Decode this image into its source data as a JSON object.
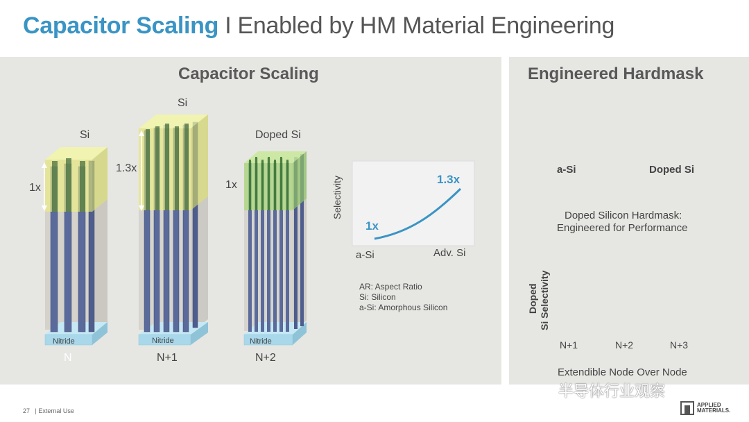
{
  "title": {
    "highlight": "Capacitor Scaling",
    "rest": " I Enabled by HM Material Engineering"
  },
  "left": {
    "title": "Capacitor Scaling",
    "columns": [
      {
        "top_label": "Si",
        "scale": "1x",
        "base": "Nitride",
        "node": "N"
      },
      {
        "top_label": "Si",
        "scale": "1.3x",
        "base": "Nitride",
        "node": "N+1"
      },
      {
        "top_label": "Doped Si",
        "scale": "1x",
        "base": "Nitride",
        "node": "N+2"
      }
    ],
    "selectivity_chart": {
      "ylabel": "Selectivity",
      "start": "1x",
      "end": "1.3x",
      "x_start": "a-Si",
      "x_end": "Adv. Si"
    },
    "notes": [
      "AR: Aspect Ratio",
      "Si: Silicon",
      "a-Si: Amorphous Silicon"
    ]
  },
  "right": {
    "title": "Engineered Hardmask",
    "cube_left": "a-Si",
    "cube_right": "Doped Si",
    "caption": [
      "Doped Silicon Hardmask:",
      "Engineered for Performance"
    ],
    "chart": {
      "ylabel": [
        "Doped",
        "Si Selectivity"
      ],
      "ticks": [
        "N+1",
        "N+2",
        "N+3"
      ],
      "xlabel": "Extendible Node Over Node"
    }
  },
  "footer": {
    "page": "27",
    "text": "| External Use"
  },
  "watermark": "半导体行业观察",
  "brand": [
    "APPLIED",
    "MATERIALS."
  ],
  "colors": {
    "accent": "#3a94c4",
    "pillar": "#5a6a9a",
    "hardmask": "#eef27a",
    "doped": "#a8d878",
    "nitride": "#a9d8ea",
    "green": "#6cb52d"
  }
}
